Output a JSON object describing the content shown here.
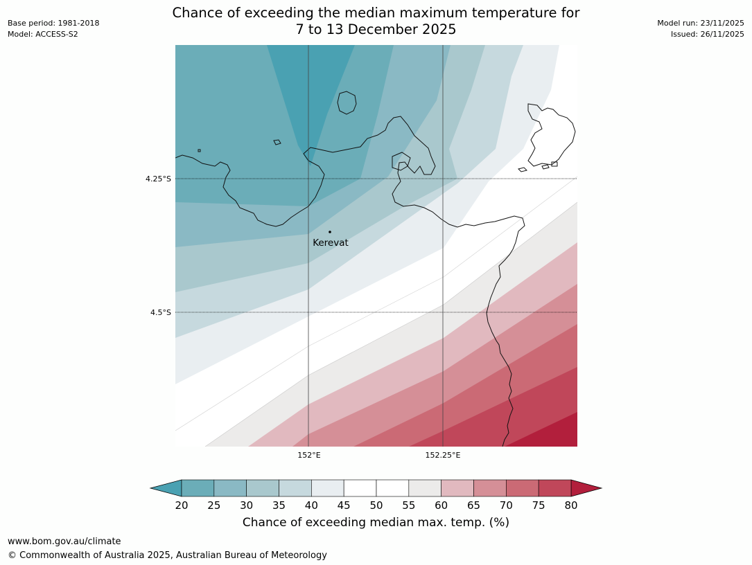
{
  "header": {
    "title_line1": "Chance of exceeding the median maximum temperature for",
    "title_line2": "7 to 13 December 2025",
    "base_period": "Base period: 1981-2018",
    "model": "Model: ACCESS-S2",
    "model_run": "Model run: 23/11/2025",
    "issued": "Issued: 26/11/2025"
  },
  "map": {
    "lat_labels": [
      "4.25°S",
      "4.5°S"
    ],
    "lon_labels": [
      "152°E",
      "152.25°E"
    ],
    "place": {
      "name": "Kerevat"
    }
  },
  "colorbar": {
    "title": "Chance of exceeding median max. temp. (%)",
    "ticks": [
      "20",
      "25",
      "30",
      "35",
      "40",
      "45",
      "50",
      "55",
      "60",
      "65",
      "70",
      "75",
      "80"
    ],
    "colors": [
      "#6badb8",
      "#8ab9c4",
      "#a9c8cd",
      "#c6d9de",
      "#e9eef1",
      "#ffffff",
      "#ffffff",
      "#ecebea",
      "#e1b9bf",
      "#d58f97",
      "#cb6a75",
      "#c0475a"
    ],
    "under_color": "#4aa1b2",
    "over_color": "#b21f3c"
  },
  "footer": {
    "url": "www.bom.gov.au/climate",
    "copyright": "© Commonwealth of Australia 2025, Australian Bureau of Meteorology"
  }
}
